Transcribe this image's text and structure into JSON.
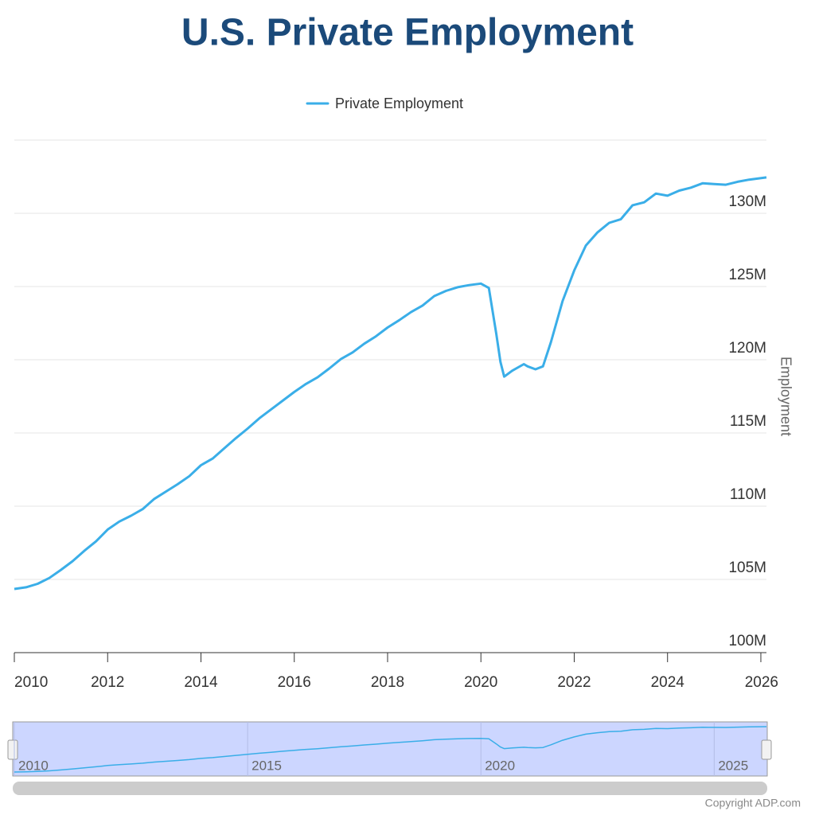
{
  "chart_data": {
    "type": "line",
    "title": "U.S. Private Employment",
    "y_axis_label": "Employment",
    "copyright": "Copyright ADP.com",
    "x": [
      2010,
      2010.25,
      2010.5,
      2010.75,
      2011,
      2011.25,
      2011.5,
      2011.75,
      2012,
      2012.25,
      2012.5,
      2012.75,
      2013,
      2013.25,
      2013.5,
      2013.75,
      2014,
      2014.25,
      2014.5,
      2014.75,
      2015,
      2015.25,
      2015.5,
      2015.75,
      2016,
      2016.25,
      2016.5,
      2016.75,
      2017,
      2017.25,
      2017.5,
      2017.75,
      2018,
      2018.25,
      2018.5,
      2018.75,
      2019,
      2019.25,
      2019.5,
      2019.75,
      2020,
      2020.17,
      2020.33,
      2020.42,
      2020.5,
      2020.67,
      2020.92,
      2021,
      2021.17,
      2021.33,
      2021.5,
      2021.75,
      2022,
      2022.25,
      2022.5,
      2022.75,
      2023,
      2023.25,
      2023.5,
      2023.75,
      2024,
      2024.25,
      2024.5,
      2024.75,
      2025,
      2025.25,
      2025.5,
      2025.75,
      2026.12
    ],
    "series": [
      {
        "name": "Private Employment",
        "color": "#3aaee8",
        "values": [
          104350000,
          104460000,
          104700000,
          105100000,
          105650000,
          106250000,
          106950000,
          107600000,
          108400000,
          108950000,
          109350000,
          109800000,
          110500000,
          111000000,
          111500000,
          112050000,
          112800000,
          113250000,
          113950000,
          114650000,
          115300000,
          116000000,
          116600000,
          117200000,
          117800000,
          118350000,
          118800000,
          119400000,
          120050000,
          120500000,
          121100000,
          121600000,
          122200000,
          122700000,
          123250000,
          123700000,
          124350000,
          124700000,
          124950000,
          125100000,
          125200000,
          124900000,
          121750000,
          119850000,
          118850000,
          119250000,
          119700000,
          119550000,
          119350000,
          119550000,
          121200000,
          124000000,
          126100000,
          127800000,
          128700000,
          129350000,
          129600000,
          130550000,
          130750000,
          131350000,
          131200000,
          131550000,
          131750000,
          132050000,
          132000000,
          131950000,
          132150000,
          132300000,
          132450000
        ]
      }
    ],
    "xlim": [
      2010,
      2026.12
    ],
    "xticks": [
      2010,
      2012,
      2014,
      2016,
      2018,
      2020,
      2022,
      2024,
      2026
    ],
    "ylim": [
      100000000,
      135000000
    ],
    "yticks": [
      {
        "value": 100000000,
        "label": "100M"
      },
      {
        "value": 105000000,
        "label": "105M"
      },
      {
        "value": 110000000,
        "label": "110M"
      },
      {
        "value": 115000000,
        "label": "115M"
      },
      {
        "value": 120000000,
        "label": "120M"
      },
      {
        "value": 125000000,
        "label": "125M"
      },
      {
        "value": 130000000,
        "label": "130M"
      }
    ],
    "grid": true,
    "legend": "top",
    "navigator": {
      "xticks": [
        2010,
        2015,
        2020,
        2025
      ]
    }
  }
}
